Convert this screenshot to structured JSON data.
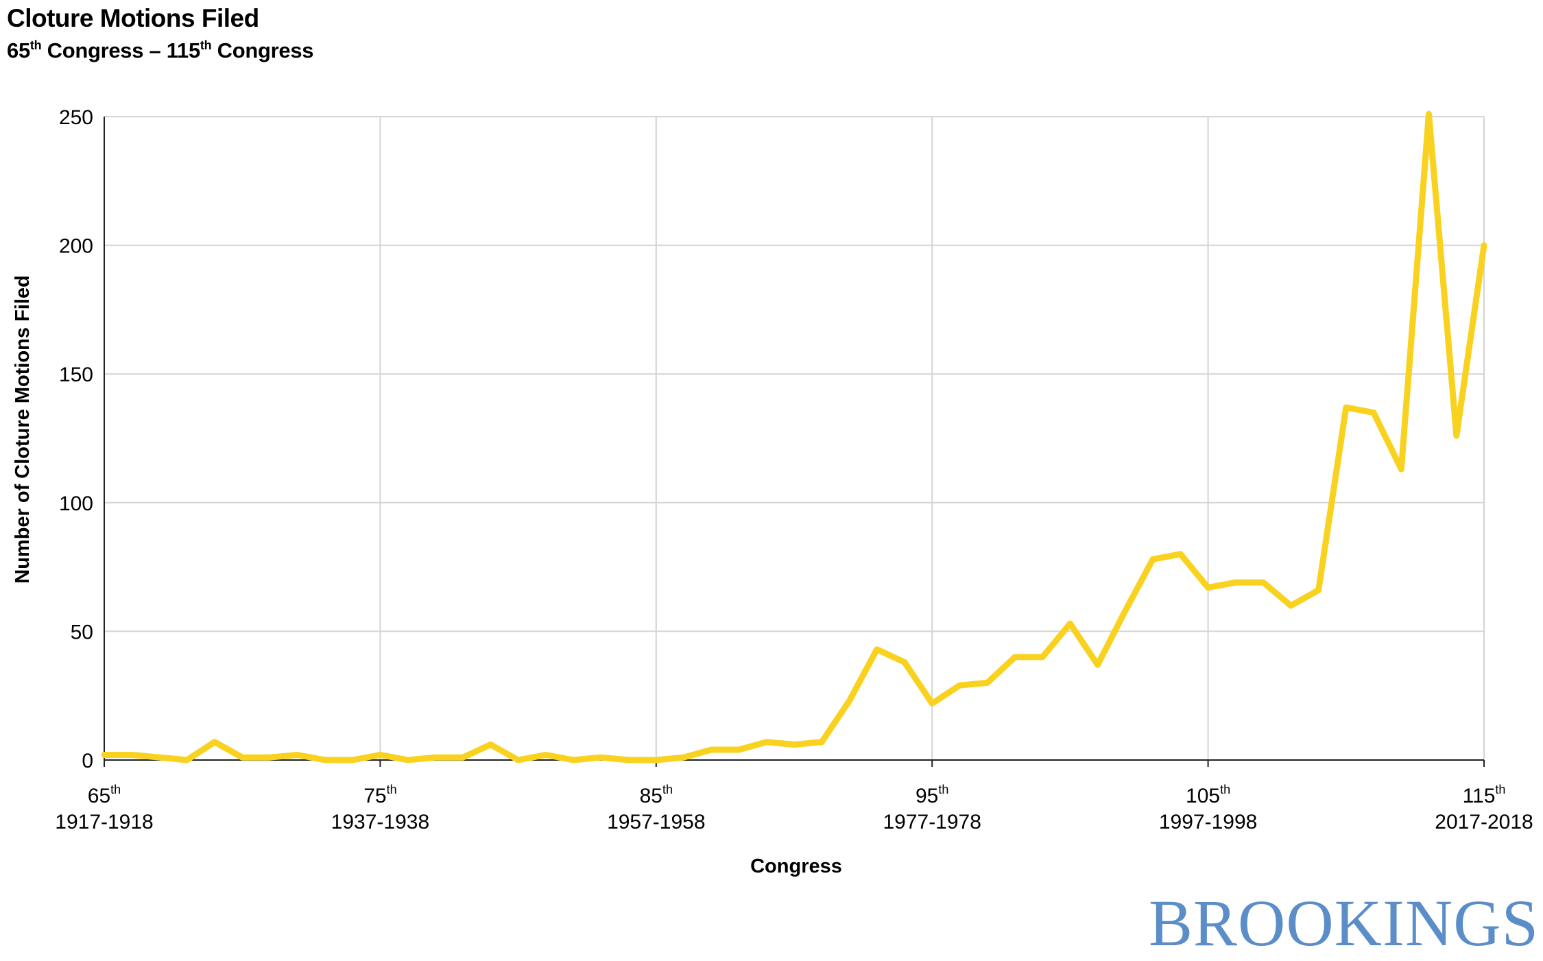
{
  "title": "Cloture Motions Filed",
  "subtitle": {
    "start_num": "65",
    "start_sup": "th",
    "start_word": "Congress –",
    "end_num": "115",
    "end_sup": "th",
    "end_word": "Congress"
  },
  "logo": "BROOKINGS",
  "colors": {
    "line": "#f9d21f",
    "grid": "#d4d4d4",
    "axis": "#222222",
    "logo": "#5b8dc9"
  },
  "chart_data": {
    "type": "line",
    "title": "Cloture Motions Filed",
    "xlabel": "Congress",
    "ylabel": "Number of Cloture Motions Filed",
    "xlim": [
      65,
      115
    ],
    "ylim": [
      0,
      250
    ],
    "yticks": [
      0,
      50,
      100,
      150,
      200,
      250
    ],
    "xticks": [
      {
        "value": 65,
        "num": "65",
        "sup": "th",
        "years": "1917-1918"
      },
      {
        "value": 75,
        "num": "75",
        "sup": "th",
        "years": "1937-1938"
      },
      {
        "value": 85,
        "num": "85",
        "sup": "th",
        "years": "1957-1958"
      },
      {
        "value": 95,
        "num": "95",
        "sup": "th",
        "years": "1977-1978"
      },
      {
        "value": 105,
        "num": "105",
        "sup": "th",
        "years": "1997-1998"
      },
      {
        "value": 115,
        "num": "115",
        "sup": "th",
        "years": "2017-2018"
      }
    ],
    "grid": true,
    "series": [
      {
        "x": [
          65,
          66,
          67,
          68,
          69,
          70,
          71,
          72,
          73,
          74,
          75,
          76,
          77,
          78,
          79,
          80,
          81,
          82,
          83,
          84,
          85,
          86,
          87,
          88,
          89,
          90,
          91,
          92,
          93,
          94,
          95,
          96,
          97,
          98,
          99,
          100,
          101,
          102,
          103,
          104,
          105,
          106,
          107,
          108,
          109,
          110,
          111,
          112,
          113,
          114,
          115
        ],
        "values": [
          2,
          2,
          1,
          0,
          7,
          1,
          1,
          2,
          0,
          0,
          2,
          0,
          1,
          1,
          6,
          0,
          2,
          0,
          1,
          0,
          0,
          1,
          4,
          4,
          7,
          6,
          7,
          23,
          43,
          38,
          22,
          29,
          30,
          40,
          40,
          53,
          37,
          58,
          78,
          80,
          67,
          69,
          69,
          60,
          66,
          137,
          135,
          113,
          251,
          126,
          200
        ]
      }
    ]
  }
}
